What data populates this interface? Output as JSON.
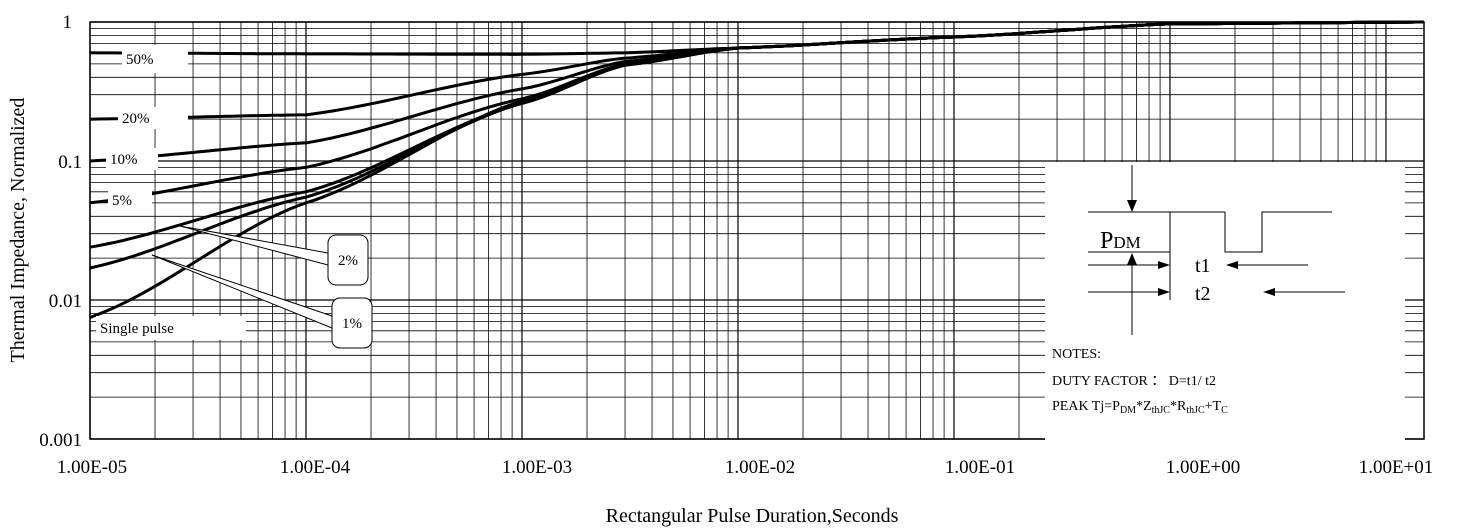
{
  "chart_data": {
    "type": "line",
    "xlabel": "Rectangular Pulse Duration,Seconds",
    "ylabel": "Thermal Impedance, Normalized",
    "x_scale": "log",
    "y_scale": "log",
    "xlim": [
      1e-05,
      15
    ],
    "ylim": [
      0.001,
      1
    ],
    "grid": true,
    "x_tick_labels": [
      "1.00E-05",
      "1.00E-04",
      "1.00E-03",
      "1.00E-02",
      "1.00E-01",
      "1.00E+00",
      "1.00E+01"
    ],
    "x_ticks": [
      1e-05,
      0.0001,
      0.001,
      0.01,
      0.1,
      1,
      10
    ],
    "y_tick_labels": [
      "1",
      "0.1",
      "0.01",
      "0.001"
    ],
    "y_ticks": [
      1,
      0.1,
      0.01,
      0.001
    ],
    "series": [
      {
        "name": "50%",
        "x": [
          1e-05,
          0.0001,
          0.001,
          0.003,
          0.01,
          0.1,
          1,
          15
        ],
        "y": [
          0.6,
          0.59,
          0.585,
          0.6,
          0.65,
          0.78,
          0.97,
          1.0
        ]
      },
      {
        "name": "20%",
        "x": [
          1e-05,
          0.0001,
          0.001,
          0.003,
          0.01,
          0.1,
          1,
          15
        ],
        "y": [
          0.2,
          0.215,
          0.42,
          0.55,
          0.65,
          0.78,
          0.97,
          1.0
        ]
      },
      {
        "name": "10%",
        "x": [
          1e-05,
          0.0001,
          0.001,
          0.003,
          0.01,
          0.1,
          1,
          15
        ],
        "y": [
          0.1,
          0.135,
          0.33,
          0.52,
          0.65,
          0.78,
          0.97,
          1.0
        ]
      },
      {
        "name": "5%",
        "x": [
          1e-05,
          0.0001,
          0.001,
          0.003,
          0.01,
          0.1,
          1,
          15
        ],
        "y": [
          0.05,
          0.09,
          0.28,
          0.5,
          0.65,
          0.78,
          0.97,
          1.0
        ]
      },
      {
        "name": "2%",
        "x": [
          1e-05,
          0.0001,
          0.001,
          0.003,
          0.01,
          0.1,
          1,
          15
        ],
        "y": [
          0.024,
          0.06,
          0.26,
          0.49,
          0.65,
          0.78,
          0.97,
          1.0
        ]
      },
      {
        "name": "1%",
        "x": [
          1e-05,
          0.0001,
          0.001,
          0.003,
          0.01,
          0.1,
          1,
          15
        ],
        "y": [
          0.017,
          0.055,
          0.26,
          0.49,
          0.65,
          0.78,
          0.97,
          1.0
        ]
      },
      {
        "name": "Single pulse",
        "x": [
          1e-05,
          0.0001,
          0.001,
          0.003,
          0.01,
          0.1,
          1,
          15
        ],
        "y": [
          0.0075,
          0.05,
          0.27,
          0.5,
          0.65,
          0.78,
          0.97,
          1.0
        ]
      }
    ],
    "callouts": [
      "2%",
      "1%"
    ],
    "diagram": {
      "pdm_label": "P",
      "pdm_sub": "DM",
      "t1_label": "t1",
      "t2_label": "t2"
    },
    "notes": {
      "title": "NOTES:",
      "duty": "DUTY FACTOR ： D=t1/ t2",
      "peak": "PEAK Tj=P_DM*Z_thJC*R_thJC+T_C"
    }
  }
}
